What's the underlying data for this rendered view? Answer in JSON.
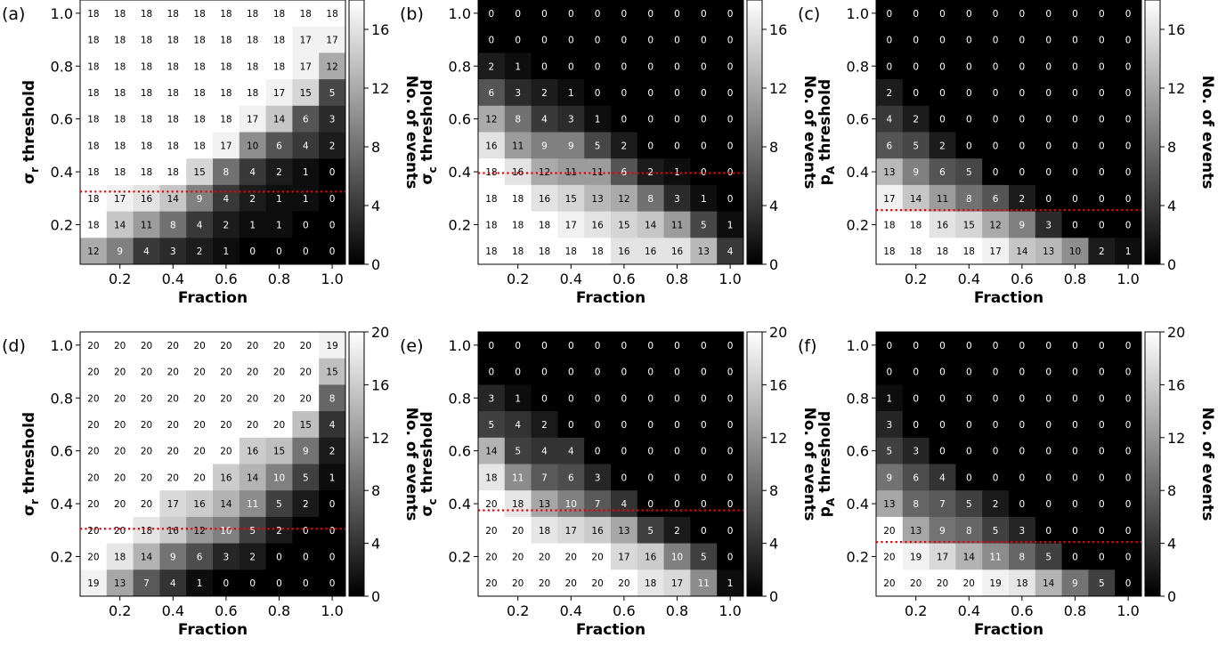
{
  "chart_data": [
    {
      "type": "heatmap",
      "panel_label": "(a)",
      "xlabel": "Fraction",
      "ylabel_main": "σ",
      "ylabel_sub": "r",
      "ylabel_rest": " threshold",
      "colorbar_label": "No. of events",
      "x_ticks": [
        "0.2",
        "0.4",
        "0.6",
        "0.8",
        "1.0"
      ],
      "y_ticks": [
        "0.2",
        "0.4",
        "0.6",
        "0.8",
        "1.0"
      ],
      "colorbar_ticks": [
        "0",
        "4",
        "8",
        "12",
        "16"
      ],
      "vmax": 18,
      "threshold_line_y": 0.325,
      "values": [
        [
          18,
          18,
          18,
          18,
          18,
          18,
          18,
          18,
          18,
          18
        ],
        [
          18,
          18,
          18,
          18,
          18,
          18,
          18,
          18,
          17,
          17
        ],
        [
          18,
          18,
          18,
          18,
          18,
          18,
          18,
          18,
          17,
          12
        ],
        [
          18,
          18,
          18,
          18,
          18,
          18,
          18,
          17,
          15,
          5
        ],
        [
          18,
          18,
          18,
          18,
          18,
          18,
          17,
          14,
          6,
          3
        ],
        [
          18,
          18,
          18,
          18,
          18,
          17,
          10,
          6,
          4,
          2
        ],
        [
          18,
          18,
          18,
          18,
          15,
          8,
          4,
          2,
          1,
          0
        ],
        [
          18,
          17,
          16,
          14,
          9,
          4,
          2,
          1,
          1,
          0
        ],
        [
          18,
          14,
          11,
          8,
          4,
          2,
          1,
          1,
          0,
          0
        ],
        [
          12,
          9,
          4,
          3,
          2,
          1,
          0,
          0,
          0,
          0
        ]
      ]
    },
    {
      "type": "heatmap",
      "panel_label": "(b)",
      "xlabel": "Fraction",
      "ylabel_main": "σ",
      "ylabel_sub": "c",
      "ylabel_rest": " threshold",
      "colorbar_label": "No. of events",
      "x_ticks": [
        "0.2",
        "0.4",
        "0.6",
        "0.8",
        "1.0"
      ],
      "y_ticks": [
        "0.2",
        "0.4",
        "0.6",
        "0.8",
        "1.0"
      ],
      "colorbar_ticks": [
        "0",
        "4",
        "8",
        "12",
        "16"
      ],
      "vmax": 18,
      "threshold_line_y": 0.395,
      "values": [
        [
          0,
          0,
          0,
          0,
          0,
          0,
          0,
          0,
          0,
          0
        ],
        [
          0,
          0,
          0,
          0,
          0,
          0,
          0,
          0,
          0,
          0
        ],
        [
          2,
          1,
          0,
          0,
          0,
          0,
          0,
          0,
          0,
          0
        ],
        [
          6,
          3,
          2,
          1,
          0,
          0,
          0,
          0,
          0,
          0
        ],
        [
          12,
          8,
          4,
          3,
          1,
          0,
          0,
          0,
          0,
          0
        ],
        [
          16,
          11,
          9,
          9,
          5,
          2,
          0,
          0,
          0,
          0
        ],
        [
          18,
          16,
          12,
          11,
          11,
          6,
          2,
          1,
          0,
          0
        ],
        [
          18,
          18,
          16,
          15,
          13,
          12,
          8,
          3,
          1,
          0
        ],
        [
          18,
          18,
          18,
          17,
          16,
          15,
          14,
          11,
          5,
          1
        ],
        [
          18,
          18,
          18,
          18,
          18,
          16,
          16,
          16,
          13,
          4
        ]
      ]
    },
    {
      "type": "heatmap",
      "panel_label": "(c)",
      "xlabel": "Fraction",
      "ylabel_main": "p",
      "ylabel_sub": "A",
      "ylabel_rest": " threshold",
      "colorbar_label": "No. of events",
      "x_ticks": [
        "0.2",
        "0.4",
        "0.6",
        "0.8",
        "1.0"
      ],
      "y_ticks": [
        "0.2",
        "0.4",
        "0.6",
        "0.8",
        "1.0"
      ],
      "colorbar_ticks": [
        "0",
        "4",
        "8",
        "12",
        "16"
      ],
      "vmax": 18,
      "threshold_line_y": 0.255,
      "values": [
        [
          0,
          0,
          0,
          0,
          0,
          0,
          0,
          0,
          0,
          0
        ],
        [
          0,
          0,
          0,
          0,
          0,
          0,
          0,
          0,
          0,
          0
        ],
        [
          0,
          0,
          0,
          0,
          0,
          0,
          0,
          0,
          0,
          0
        ],
        [
          2,
          0,
          0,
          0,
          0,
          0,
          0,
          0,
          0,
          0
        ],
        [
          4,
          2,
          0,
          0,
          0,
          0,
          0,
          0,
          0,
          0
        ],
        [
          6,
          5,
          2,
          0,
          0,
          0,
          0,
          0,
          0,
          0
        ],
        [
          13,
          9,
          6,
          5,
          0,
          0,
          0,
          0,
          0,
          0
        ],
        [
          17,
          14,
          11,
          8,
          6,
          2,
          0,
          0,
          0,
          0
        ],
        [
          18,
          18,
          16,
          15,
          12,
          9,
          3,
          0,
          0,
          0
        ],
        [
          18,
          18,
          18,
          18,
          17,
          14,
          13,
          10,
          2,
          1
        ]
      ]
    },
    {
      "type": "heatmap",
      "panel_label": "(d)",
      "xlabel": "Fraction",
      "ylabel_main": "σ",
      "ylabel_sub": "r",
      "ylabel_rest": " threshold",
      "colorbar_label": "No. of events",
      "x_ticks": [
        "0.2",
        "0.4",
        "0.6",
        "0.8",
        "1.0"
      ],
      "y_ticks": [
        "0.2",
        "0.4",
        "0.6",
        "0.8",
        "1.0"
      ],
      "colorbar_ticks": [
        "0",
        "4",
        "8",
        "12",
        "16",
        "20"
      ],
      "vmax": 20,
      "threshold_line_y": 0.305,
      "values": [
        [
          20,
          20,
          20,
          20,
          20,
          20,
          20,
          20,
          20,
          19
        ],
        [
          20,
          20,
          20,
          20,
          20,
          20,
          20,
          20,
          20,
          15
        ],
        [
          20,
          20,
          20,
          20,
          20,
          20,
          20,
          20,
          20,
          8
        ],
        [
          20,
          20,
          20,
          20,
          20,
          20,
          20,
          20,
          15,
          4
        ],
        [
          20,
          20,
          20,
          20,
          20,
          20,
          16,
          15,
          9,
          2
        ],
        [
          20,
          20,
          20,
          20,
          20,
          16,
          14,
          10,
          5,
          1
        ],
        [
          20,
          20,
          20,
          17,
          16,
          14,
          11,
          5,
          2,
          0
        ],
        [
          20,
          20,
          18,
          16,
          12,
          10,
          5,
          2,
          0,
          0
        ],
        [
          20,
          18,
          14,
          9,
          6,
          3,
          2,
          0,
          0,
          0
        ],
        [
          19,
          13,
          7,
          4,
          1,
          0,
          0,
          0,
          0,
          0
        ]
      ]
    },
    {
      "type": "heatmap",
      "panel_label": "(e)",
      "xlabel": "Fraction",
      "ylabel_main": "σ",
      "ylabel_sub": "c",
      "ylabel_rest": " threshold",
      "colorbar_label": "No. of events",
      "x_ticks": [
        "0.2",
        "0.4",
        "0.6",
        "0.8",
        "1.0"
      ],
      "y_ticks": [
        "0.2",
        "0.4",
        "0.6",
        "0.8",
        "1.0"
      ],
      "colorbar_ticks": [
        "0",
        "4",
        "8",
        "12",
        "16",
        "20"
      ],
      "vmax": 20,
      "threshold_line_y": 0.375,
      "values": [
        [
          0,
          0,
          0,
          0,
          0,
          0,
          0,
          0,
          0,
          0
        ],
        [
          0,
          0,
          0,
          0,
          0,
          0,
          0,
          0,
          0,
          0
        ],
        [
          3,
          1,
          0,
          0,
          0,
          0,
          0,
          0,
          0,
          0
        ],
        [
          5,
          4,
          2,
          0,
          0,
          0,
          0,
          0,
          0,
          0
        ],
        [
          14,
          5,
          4,
          4,
          0,
          0,
          0,
          0,
          0,
          0
        ],
        [
          18,
          11,
          7,
          6,
          3,
          0,
          0,
          0,
          0,
          0
        ],
        [
          20,
          18,
          13,
          10,
          7,
          4,
          0,
          0,
          0,
          0
        ],
        [
          20,
          20,
          18,
          17,
          16,
          13,
          5,
          2,
          0,
          0
        ],
        [
          20,
          20,
          20,
          20,
          20,
          17,
          16,
          10,
          5,
          0
        ],
        [
          20,
          20,
          20,
          20,
          20,
          20,
          18,
          17,
          11,
          1
        ]
      ]
    },
    {
      "type": "heatmap",
      "panel_label": "(f)",
      "xlabel": "Fraction",
      "ylabel_main": "p",
      "ylabel_sub": "A",
      "ylabel_rest": " threshold",
      "colorbar_label": "No. of events",
      "x_ticks": [
        "0.2",
        "0.4",
        "0.6",
        "0.8",
        "1.0"
      ],
      "y_ticks": [
        "0.2",
        "0.4",
        "0.6",
        "0.8",
        "1.0"
      ],
      "colorbar_ticks": [
        "0",
        "4",
        "8",
        "12",
        "16",
        "20"
      ],
      "vmax": 20,
      "threshold_line_y": 0.255,
      "values": [
        [
          0,
          0,
          0,
          0,
          0,
          0,
          0,
          0,
          0,
          0
        ],
        [
          0,
          0,
          0,
          0,
          0,
          0,
          0,
          0,
          0,
          0
        ],
        [
          1,
          0,
          0,
          0,
          0,
          0,
          0,
          0,
          0,
          0
        ],
        [
          3,
          0,
          0,
          0,
          0,
          0,
          0,
          0,
          0,
          0
        ],
        [
          5,
          3,
          0,
          0,
          0,
          0,
          0,
          0,
          0,
          0
        ],
        [
          9,
          6,
          4,
          0,
          0,
          0,
          0,
          0,
          0,
          0
        ],
        [
          13,
          8,
          7,
          5,
          2,
          0,
          0,
          0,
          0,
          0
        ],
        [
          20,
          13,
          9,
          8,
          5,
          3,
          0,
          0,
          0,
          0
        ],
        [
          20,
          19,
          17,
          14,
          11,
          8,
          5,
          0,
          0,
          0
        ],
        [
          20,
          20,
          20,
          20,
          19,
          18,
          14,
          9,
          5,
          0
        ]
      ]
    }
  ],
  "colors": {
    "threshold_line": "#e8000b"
  }
}
